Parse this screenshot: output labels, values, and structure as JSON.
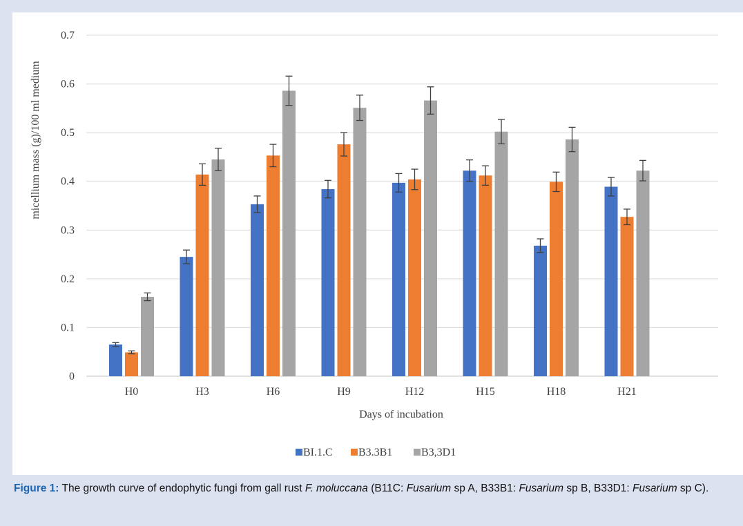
{
  "chart_data": {
    "type": "bar",
    "title": "",
    "xlabel": "Days of incubation",
    "ylabel": "micellium mass (g)/100 ml medium",
    "ylim": [
      0,
      0.7
    ],
    "yticks": [
      "0",
      "0.1",
      "0.2",
      "0.3",
      "0.4",
      "0.5",
      "0.6",
      "0.7"
    ],
    "categories": [
      "H0",
      "H3",
      "H6",
      "H9",
      "H12",
      "H15",
      "H18",
      "H21"
    ],
    "series": [
      {
        "name": "BI.1.C",
        "color": "#4472c4",
        "values": [
          0.065,
          0.245,
          0.353,
          0.384,
          0.397,
          0.422,
          0.268,
          0.389
        ],
        "errors": [
          0.004,
          0.014,
          0.017,
          0.018,
          0.019,
          0.022,
          0.014,
          0.019
        ]
      },
      {
        "name": "B3.3B1",
        "color": "#ed7d31",
        "values": [
          0.049,
          0.414,
          0.453,
          0.476,
          0.404,
          0.412,
          0.399,
          0.327
        ],
        "errors": [
          0.003,
          0.022,
          0.023,
          0.024,
          0.021,
          0.02,
          0.02,
          0.016
        ]
      },
      {
        "name": "B3,3D1",
        "color": "#a5a5a5",
        "values": [
          0.163,
          0.445,
          0.586,
          0.551,
          0.566,
          0.502,
          0.486,
          0.422
        ],
        "errors": [
          0.008,
          0.023,
          0.03,
          0.026,
          0.028,
          0.025,
          0.025,
          0.021
        ]
      }
    ],
    "legend_position": "bottom",
    "grid": true
  },
  "caption": {
    "label": "Figure 1:",
    "parts": [
      {
        "text": " The growth curve of endophytic fungi from gall rust ",
        "italic": false
      },
      {
        "text": "F. moluccana",
        "italic": true
      },
      {
        "text": " (B11C: ",
        "italic": false
      },
      {
        "text": "Fusarium",
        "italic": true
      },
      {
        "text": " sp A, B33B1: ",
        "italic": false
      },
      {
        "text": "Fusarium",
        "italic": true
      },
      {
        "text": " sp B, B33D1: ",
        "italic": false
      },
      {
        "text": "Fusarium",
        "italic": true
      },
      {
        "text": " sp C).",
        "italic": false
      }
    ]
  }
}
